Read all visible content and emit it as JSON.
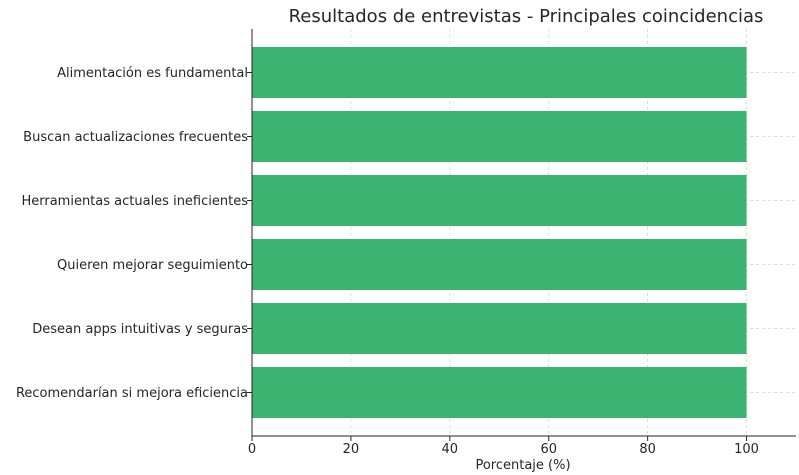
{
  "chart_data": {
    "type": "bar",
    "orientation": "horizontal",
    "title": "Resultados de entrevistas - Principales coincidencias",
    "xlabel": "Porcentaje (%)",
    "ylabel": "",
    "categories": [
      "Alimentación es fundamental",
      "Buscan actualizaciones frecuentes",
      "Herramientas actuales ineficientes",
      "Quieren mejorar seguimiento",
      "Desean apps intuitivas y seguras",
      "Recomendarían si mejora eficiencia"
    ],
    "values": [
      100,
      100,
      100,
      100,
      100,
      100
    ],
    "xlim": [
      0,
      110
    ],
    "xticks": [
      "0",
      "20",
      "40",
      "60",
      "80",
      "100"
    ],
    "bar_color": "#3cb371",
    "grid": true,
    "legend": "none"
  }
}
